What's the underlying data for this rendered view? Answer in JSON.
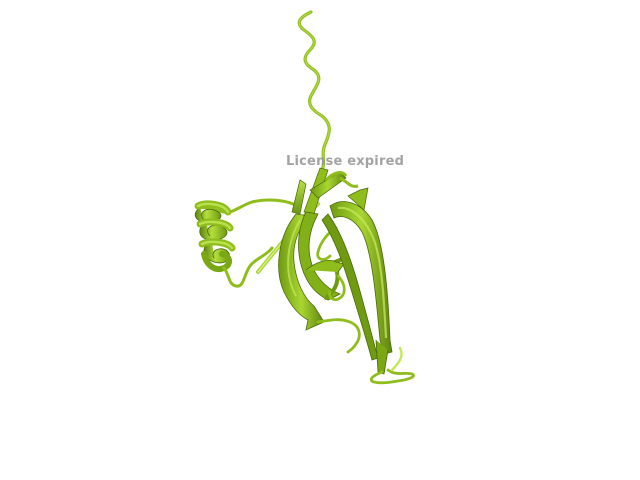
{
  "viewer": {
    "watermark_text": "License expired",
    "watermark_color": "#9a9a9a",
    "background_color": "#ffffff"
  },
  "molecule": {
    "representation": "cartoon",
    "colors": {
      "main": "#8fbe1c",
      "light": "#c4e85a",
      "dark": "#5e8410",
      "shadow": "#4a6a0a"
    }
  }
}
